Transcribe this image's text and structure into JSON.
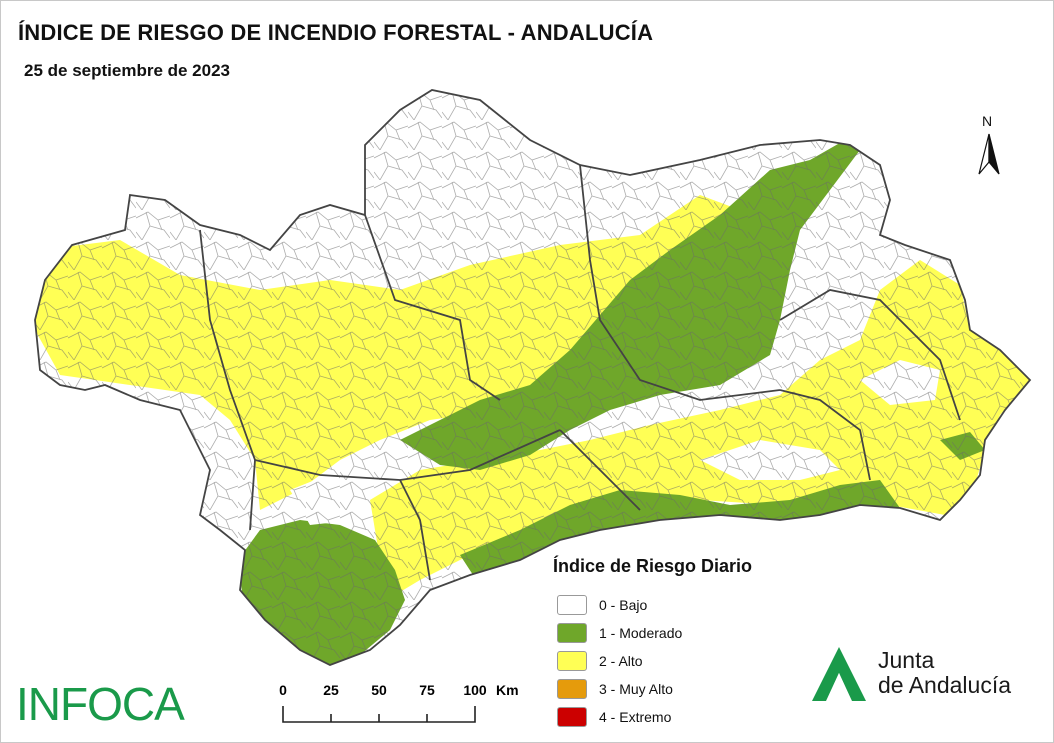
{
  "header": {
    "title": "ÍNDICE DE RIESGO DE INCENDIO FORESTAL - ANDALUCÍA",
    "date": "25 de septiembre de 2023"
  },
  "north_arrow": {
    "label": "N"
  },
  "legend": {
    "title": "Índice de Riesgo Diario",
    "items": [
      {
        "label": "0 - Bajo",
        "color": "#ffffff"
      },
      {
        "label": "1 - Moderado",
        "color": "#6fa72a"
      },
      {
        "label": "2 - Alto",
        "color": "#ffff55"
      },
      {
        "label": "3 - Muy Alto",
        "color": "#e59b0c"
      },
      {
        "label": "4 - Extremo",
        "color": "#cc0000"
      }
    ]
  },
  "scale_bar": {
    "ticks": [
      "0",
      "25",
      "50",
      "75",
      "100"
    ],
    "unit": "Km"
  },
  "logos": {
    "infoca": "INFOCA",
    "junta_line1": "Junta",
    "junta_line2": "de Andalucía"
  },
  "colors": {
    "low": "#ffffff",
    "moderate": "#6fa72a",
    "high": "#ffff55",
    "border": "#555555",
    "brand_green": "#1a9a4a"
  }
}
